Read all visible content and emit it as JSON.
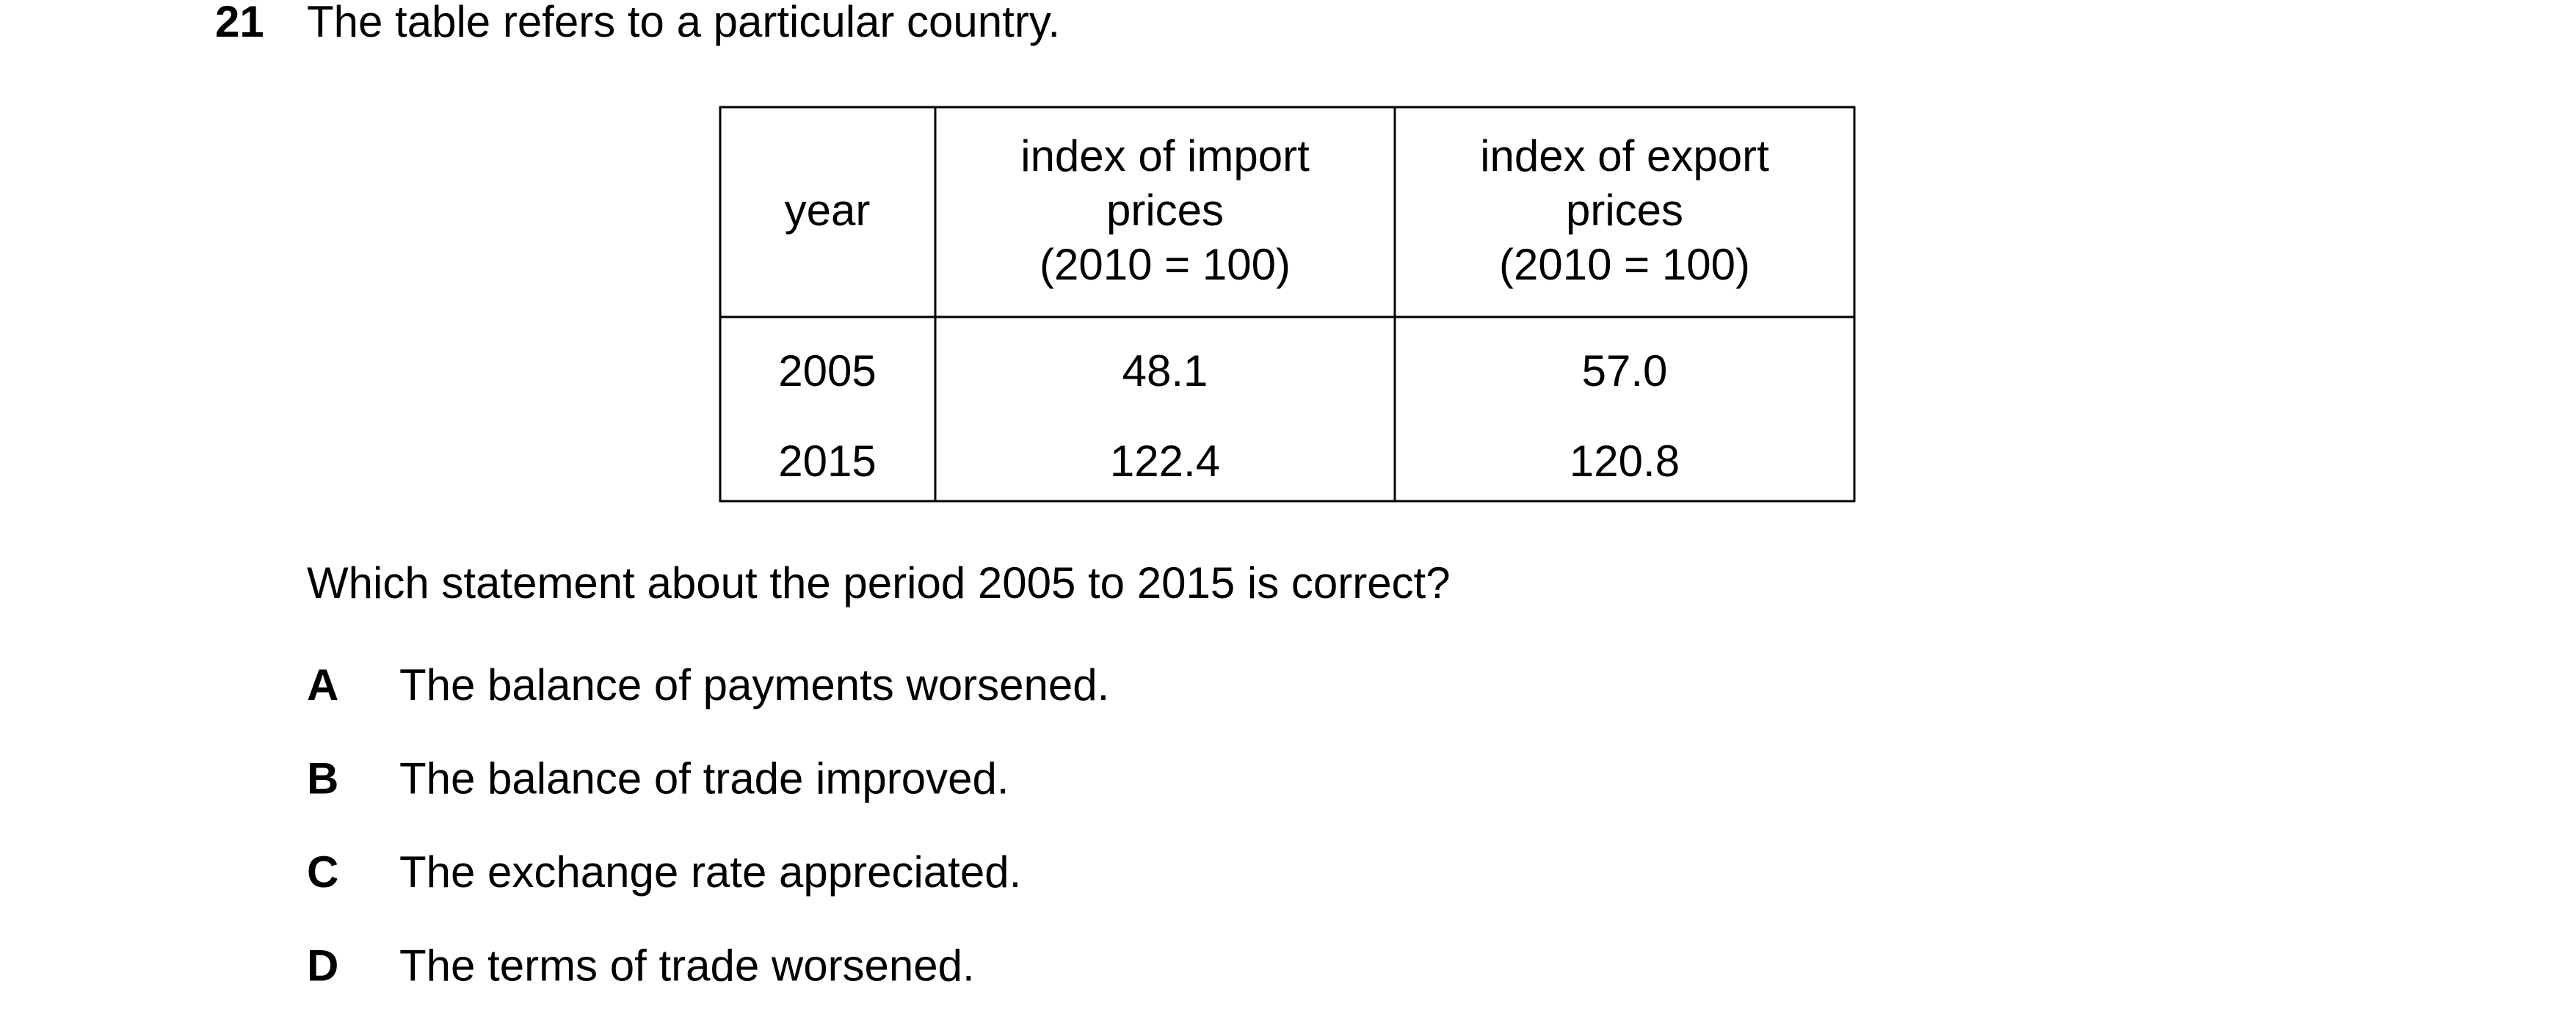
{
  "question": {
    "number": "21",
    "stem": "The table refers to a particular country.",
    "prompt": "Which statement about the period 2005 to 2015 is correct?"
  },
  "table": {
    "header": [
      [
        "year"
      ],
      [
        "index of import",
        "prices",
        "(2010 = 100)"
      ],
      [
        "index of export",
        "prices",
        "(2010 = 100)"
      ]
    ],
    "rows": [
      [
        "2005",
        "48.1",
        "57.0"
      ],
      [
        "2015",
        "122.4",
        "120.8"
      ]
    ]
  },
  "options": [
    {
      "letter": "A",
      "text": "The balance of payments worsened."
    },
    {
      "letter": "B",
      "text": "The balance of trade improved."
    },
    {
      "letter": "C",
      "text": "The exchange rate appreciated."
    },
    {
      "letter": "D",
      "text": "The terms of trade worsened."
    }
  ]
}
